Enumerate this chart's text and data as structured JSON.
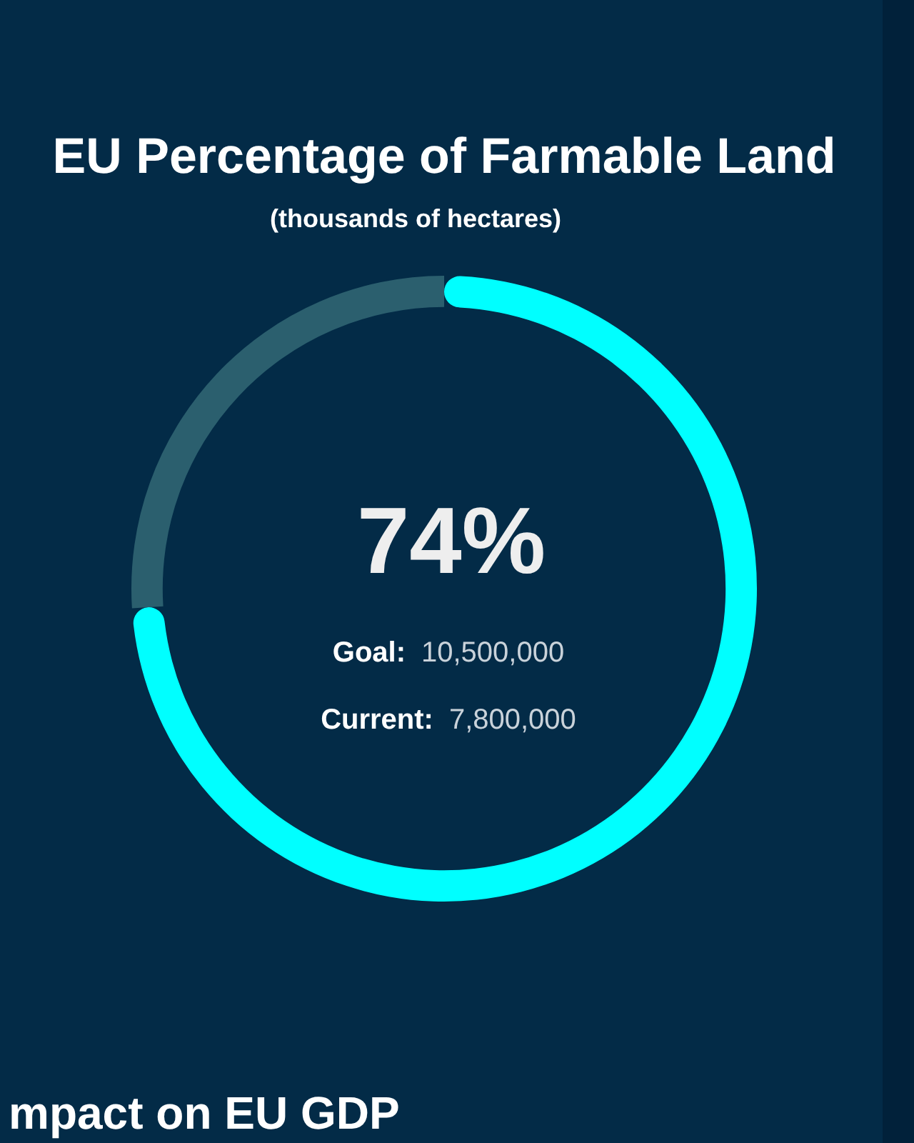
{
  "chart_data": {
    "type": "donut",
    "title": "EU Percentage of Farmable Land",
    "subtitle": "(thousands of hectares)",
    "categories": [
      null,
      null
    ],
    "values": [
      74,
      26
    ],
    "colors": [
      "#00ffff",
      "#2b5f6e"
    ],
    "value_labels": [
      "74%",
      null
    ],
    "annotations": [
      "Goal: 10,500,000",
      "Current: 7,800,000",
      "mpact on EU GDP"
    ]
  }
}
